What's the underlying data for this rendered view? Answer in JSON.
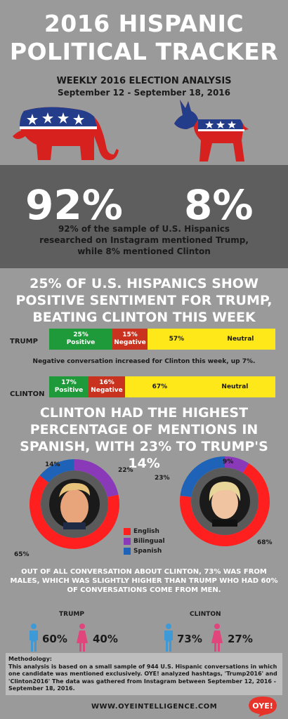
{
  "header": {
    "title_line1": "2016 HISPANIC",
    "title_line2": "POLITICAL TRACKER",
    "subtitle": "WEEKLY 2016 ELECTION ANALYSIS",
    "date_range": "September 12 - September 18, 2016"
  },
  "mentions": {
    "trump_pct": "92%",
    "clinton_pct": "8%",
    "description": "92% of the sample of U.S. Hispanics researched on Instagram mentioned Trump, while 8% mentioned Clinton"
  },
  "sentiment": {
    "title": "25% OF U.S. HISPANICS SHOW POSITIVE SENTIMENT FOR TRUMP, BEATING CLINTON THIS WEEK",
    "note": "Negative conversation increased for Clinton this week, up 7%.",
    "trump": {
      "label": "TRUMP",
      "positive": "25%",
      "positive_label": "Positive",
      "negative": "15%",
      "negative_label": "Negative",
      "neutral": "57%",
      "neutral_label": "Neutral"
    },
    "clinton": {
      "label": "CLINTON",
      "positive": "17%",
      "positive_label": "Positive",
      "negative": "16%",
      "negative_label": "Negative",
      "neutral": "67%",
      "neutral_label": "Neutral"
    },
    "colors": {
      "positive": "#1f9a3a",
      "negative": "#c8321e",
      "neutral": "#ffe81a"
    }
  },
  "language": {
    "title": "CLINTON HAD THE HIGHEST PERCENTAGE OF MENTIONS IN SPANISH, WITH 23% TO TRUMP'S 14%",
    "trump": {
      "english": 65,
      "bilingual": 22,
      "spanish": 14,
      "english_label": "65%",
      "bilingual_label": "22%",
      "spanish_label": "14%"
    },
    "clinton": {
      "english": 68,
      "bilingual": 9,
      "spanish": 23,
      "english_label": "68%",
      "bilingual_label": "9%",
      "spanish_label": "23%"
    },
    "legend": {
      "english": "English",
      "bilingual": "Bilingual",
      "spanish": "Spanish"
    },
    "colors": {
      "english": "#ff1f1f",
      "bilingual": "#8a3ab9",
      "spanish": "#1e63b8"
    }
  },
  "gender": {
    "text": "OUT OF ALL CONVERSATION ABOUT CLINTON, 73% WAS FROM MALES, WHICH WAS SLIGHTLY HIGHER THAN TRUMP WHO HAD 60% OF CONVERSATIONS COME FROM MEN.",
    "trump": {
      "label": "TRUMP",
      "male": "60%",
      "female": "40%"
    },
    "clinton": {
      "label": "CLINTON",
      "male": "73%",
      "female": "27%"
    },
    "colors": {
      "male": "#3d9ad6",
      "female": "#e0457b"
    }
  },
  "methodology": {
    "heading": "Methodology:",
    "body": "This analysis is based on a small sample of 944 U.S. Hispanic conversations in which one candidate was mentioned exclusively. OYE! analyzed hashtags, 'Trump2016' and 'Clinton2016' The data was gathered from Instagram between September 12, 2016 - September 18, 2016."
  },
  "footer": {
    "url": "WWW.OYEINTELLIGENCE.COM",
    "logo_text": "OYE!"
  }
}
